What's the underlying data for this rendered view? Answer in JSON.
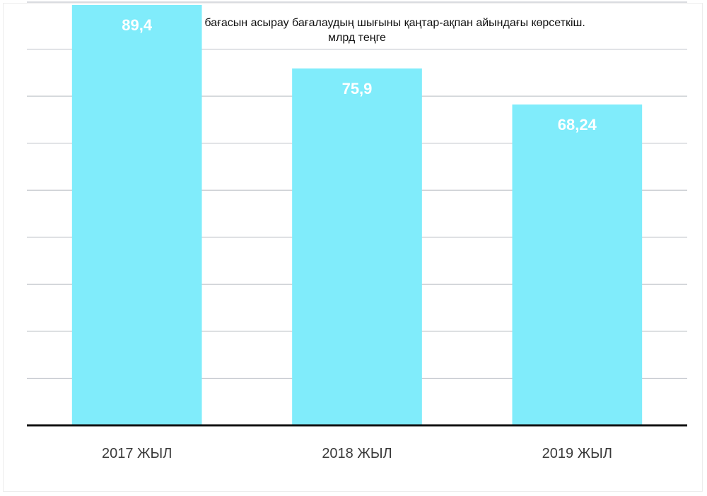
{
  "chart_data": {
    "type": "bar",
    "title": "БЖЗҚ  валюта бағасын асырау бағалаудың шығыны қаңтар-ақпан айындағы көрсеткіш.",
    "subtitle": "млрд теңге",
    "categories": [
      "2017 ЖЫЛ",
      "2018 ЖЫЛ",
      "2019 ЖЫЛ"
    ],
    "values": [
      89.4,
      75.9,
      68.24
    ],
    "value_labels": [
      "89,4",
      "75,9",
      "68,24"
    ],
    "xlabel": "",
    "ylabel": "",
    "ylim": [
      0,
      90
    ],
    "grid": true,
    "legend": "none",
    "colors": {
      "bar": "#80ecfb",
      "label": "#ffffff",
      "grid": "#c4c8ce",
      "axis": "#111111"
    }
  }
}
